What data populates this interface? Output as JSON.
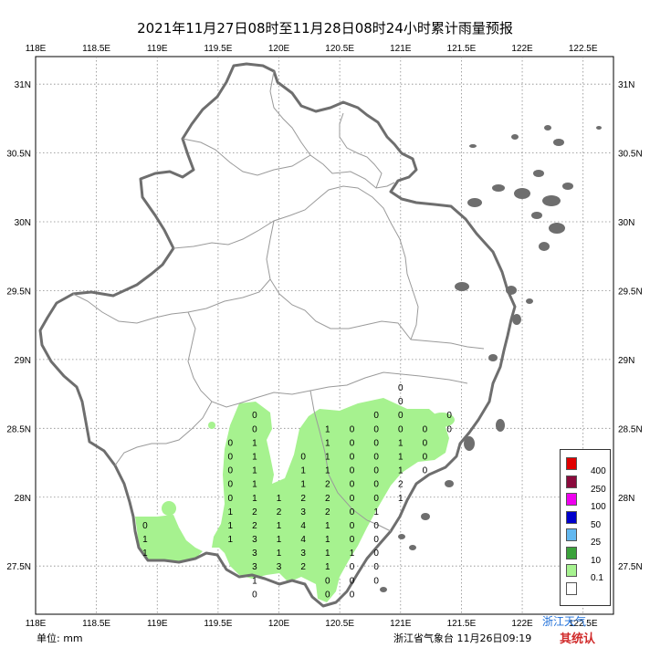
{
  "title": "2021年11月27日08时至11月28日08时24小时累计雨量预报",
  "x_ticks": [
    "118E",
    "118.5E",
    "119E",
    "119.5E",
    "120E",
    "120.5E",
    "121E",
    "121.5E",
    "122E",
    "122.5E"
  ],
  "y_ticks": [
    "31N",
    "30.5N",
    "30N",
    "29.5N",
    "29N",
    "28.5N",
    "28N",
    "27.5N"
  ],
  "legend": [
    {
      "label": "400",
      "color": "#e00000"
    },
    {
      "label": "250",
      "color": "#8a0a3c"
    },
    {
      "label": "100",
      "color": "#ee00ee"
    },
    {
      "label": "50",
      "color": "#0000cc"
    },
    {
      "label": "25",
      "color": "#62b8f0"
    },
    {
      "label": "10",
      "color": "#3ba23b"
    },
    {
      "label": "0.1",
      "color": "#a6f28f"
    },
    {
      "label": "",
      "color": "#ffffff"
    }
  ],
  "unit": "单位: mm",
  "footer": "浙江省气象台 11月26日09:19",
  "watermark_1": "浙江天气",
  "watermark_2": "其统认",
  "grid_values": [
    {
      "lon": 121.0,
      "lat": 28.8,
      "v": "0"
    },
    {
      "lon": 121.0,
      "lat": 28.7,
      "v": "0"
    },
    {
      "lon": 120.8,
      "lat": 28.6,
      "v": "0"
    },
    {
      "lon": 121.0,
      "lat": 28.6,
      "v": "0"
    },
    {
      "lon": 121.2,
      "lat": 28.5,
      "v": "0"
    },
    {
      "lon": 121.4,
      "lat": 28.5,
      "v": "0"
    },
    {
      "lon": 121.4,
      "lat": 28.6,
      "v": "0"
    },
    {
      "lon": 121.2,
      "lat": 28.4,
      "v": "0"
    },
    {
      "lon": 121.2,
      "lat": 28.3,
      "v": "0"
    },
    {
      "lon": 121.2,
      "lat": 28.2,
      "v": "0"
    },
    {
      "lon": 121.0,
      "lat": 28.5,
      "v": "0"
    },
    {
      "lon": 121.0,
      "lat": 28.4,
      "v": "1"
    },
    {
      "lon": 121.0,
      "lat": 28.3,
      "v": "1"
    },
    {
      "lon": 121.0,
      "lat": 28.2,
      "v": "1"
    },
    {
      "lon": 121.0,
      "lat": 28.1,
      "v": "2"
    },
    {
      "lon": 121.0,
      "lat": 28.0,
      "v": "1"
    },
    {
      "lon": 120.8,
      "lat": 28.5,
      "v": "0"
    },
    {
      "lon": 120.8,
      "lat": 28.4,
      "v": "0"
    },
    {
      "lon": 120.8,
      "lat": 28.3,
      "v": "0"
    },
    {
      "lon": 120.8,
      "lat": 28.2,
      "v": "0"
    },
    {
      "lon": 120.8,
      "lat": 28.1,
      "v": "0"
    },
    {
      "lon": 120.8,
      "lat": 28.0,
      "v": "0"
    },
    {
      "lon": 120.8,
      "lat": 27.9,
      "v": "1"
    },
    {
      "lon": 120.8,
      "lat": 27.8,
      "v": "0"
    },
    {
      "lon": 120.8,
      "lat": 27.7,
      "v": "0"
    },
    {
      "lon": 120.8,
      "lat": 27.6,
      "v": "0"
    },
    {
      "lon": 120.8,
      "lat": 27.5,
      "v": "0"
    },
    {
      "lon": 120.8,
      "lat": 27.4,
      "v": "0"
    },
    {
      "lon": 120.6,
      "lat": 28.5,
      "v": "0"
    },
    {
      "lon": 120.6,
      "lat": 28.4,
      "v": "0"
    },
    {
      "lon": 120.6,
      "lat": 28.3,
      "v": "0"
    },
    {
      "lon": 120.6,
      "lat": 28.2,
      "v": "0"
    },
    {
      "lon": 120.6,
      "lat": 28.1,
      "v": "0"
    },
    {
      "lon": 120.6,
      "lat": 28.0,
      "v": "0"
    },
    {
      "lon": 120.6,
      "lat": 27.9,
      "v": "0"
    },
    {
      "lon": 120.6,
      "lat": 27.8,
      "v": "0"
    },
    {
      "lon": 120.6,
      "lat": 27.7,
      "v": "0"
    },
    {
      "lon": 120.6,
      "lat": 27.6,
      "v": "1"
    },
    {
      "lon": 120.6,
      "lat": 27.5,
      "v": "0"
    },
    {
      "lon": 120.6,
      "lat": 27.4,
      "v": "0"
    },
    {
      "lon": 120.6,
      "lat": 27.3,
      "v": "0"
    },
    {
      "lon": 120.4,
      "lat": 28.5,
      "v": "1"
    },
    {
      "lon": 120.4,
      "lat": 28.4,
      "v": "1"
    },
    {
      "lon": 120.4,
      "lat": 28.3,
      "v": "1"
    },
    {
      "lon": 120.4,
      "lat": 28.2,
      "v": "1"
    },
    {
      "lon": 120.4,
      "lat": 28.1,
      "v": "2"
    },
    {
      "lon": 120.4,
      "lat": 28.0,
      "v": "2"
    },
    {
      "lon": 120.4,
      "lat": 27.9,
      "v": "2"
    },
    {
      "lon": 120.4,
      "lat": 27.8,
      "v": "1"
    },
    {
      "lon": 120.4,
      "lat": 27.7,
      "v": "1"
    },
    {
      "lon": 120.4,
      "lat": 27.6,
      "v": "1"
    },
    {
      "lon": 120.4,
      "lat": 27.5,
      "v": "1"
    },
    {
      "lon": 120.4,
      "lat": 27.4,
      "v": "0"
    },
    {
      "lon": 120.4,
      "lat": 27.3,
      "v": "0"
    },
    {
      "lon": 120.2,
      "lat": 28.3,
      "v": "0"
    },
    {
      "lon": 120.2,
      "lat": 28.2,
      "v": "1"
    },
    {
      "lon": 120.2,
      "lat": 28.1,
      "v": "1"
    },
    {
      "lon": 120.2,
      "lat": 28.0,
      "v": "2"
    },
    {
      "lon": 120.2,
      "lat": 27.9,
      "v": "3"
    },
    {
      "lon": 120.2,
      "lat": 27.8,
      "v": "4"
    },
    {
      "lon": 120.2,
      "lat": 27.7,
      "v": "4"
    },
    {
      "lon": 120.2,
      "lat": 27.6,
      "v": "3"
    },
    {
      "lon": 120.2,
      "lat": 27.5,
      "v": "2"
    },
    {
      "lon": 120.0,
      "lat": 28.0,
      "v": "1"
    },
    {
      "lon": 120.0,
      "lat": 27.9,
      "v": "2"
    },
    {
      "lon": 120.0,
      "lat": 27.8,
      "v": "1"
    },
    {
      "lon": 120.0,
      "lat": 27.7,
      "v": "1"
    },
    {
      "lon": 120.0,
      "lat": 27.6,
      "v": "1"
    },
    {
      "lon": 120.0,
      "lat": 27.5,
      "v": "3"
    },
    {
      "lon": 119.8,
      "lat": 28.6,
      "v": "0"
    },
    {
      "lon": 119.8,
      "lat": 28.5,
      "v": "0"
    },
    {
      "lon": 119.8,
      "lat": 28.4,
      "v": "1"
    },
    {
      "lon": 119.8,
      "lat": 28.3,
      "v": "1"
    },
    {
      "lon": 119.8,
      "lat": 28.2,
      "v": "1"
    },
    {
      "lon": 119.8,
      "lat": 28.1,
      "v": "1"
    },
    {
      "lon": 119.8,
      "lat": 28.0,
      "v": "1"
    },
    {
      "lon": 119.8,
      "lat": 27.9,
      "v": "2"
    },
    {
      "lon": 119.8,
      "lat": 27.8,
      "v": "2"
    },
    {
      "lon": 119.8,
      "lat": 27.7,
      "v": "3"
    },
    {
      "lon": 119.8,
      "lat": 27.6,
      "v": "3"
    },
    {
      "lon": 119.8,
      "lat": 27.5,
      "v": "3"
    },
    {
      "lon": 119.8,
      "lat": 27.4,
      "v": "1"
    },
    {
      "lon": 119.8,
      "lat": 27.3,
      "v": "0"
    },
    {
      "lon": 119.6,
      "lat": 28.4,
      "v": "0"
    },
    {
      "lon": 119.6,
      "lat": 28.3,
      "v": "0"
    },
    {
      "lon": 119.6,
      "lat": 28.2,
      "v": "0"
    },
    {
      "lon": 119.6,
      "lat": 28.1,
      "v": "0"
    },
    {
      "lon": 119.6,
      "lat": 28.0,
      "v": "0"
    },
    {
      "lon": 119.6,
      "lat": 27.9,
      "v": "1"
    },
    {
      "lon": 119.6,
      "lat": 27.8,
      "v": "1"
    },
    {
      "lon": 119.6,
      "lat": 27.7,
      "v": "1"
    },
    {
      "lon": 118.9,
      "lat": 27.8,
      "v": "0"
    },
    {
      "lon": 118.9,
      "lat": 27.7,
      "v": "1"
    },
    {
      "lon": 118.9,
      "lat": 27.6,
      "v": "1"
    }
  ]
}
